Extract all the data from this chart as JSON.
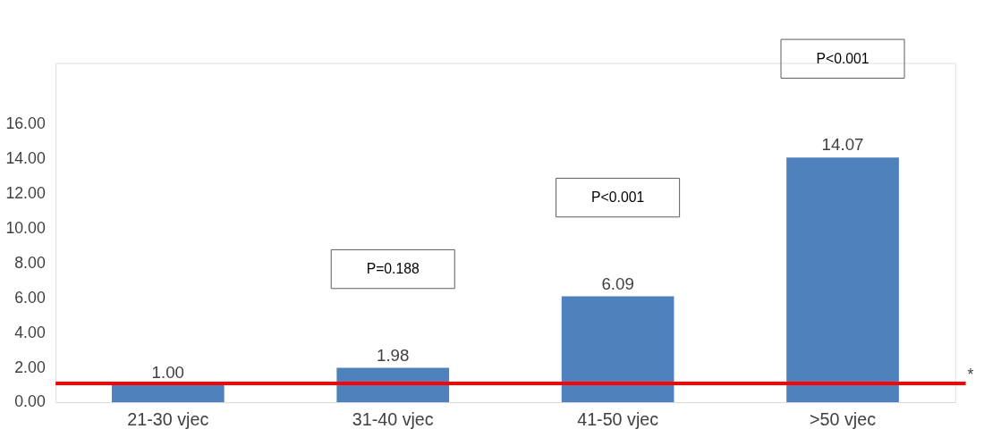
{
  "chart_data": {
    "type": "bar",
    "categories": [
      "21-30 vjec",
      "31-40 vjec",
      "41-50 vjec",
      ">50 vjec"
    ],
    "values": [
      1.0,
      1.98,
      6.09,
      14.07
    ],
    "color": "#4f81bd",
    "value_labels": [
      "1.00",
      "1.98",
      "6.09",
      "14.07"
    ],
    "ylim": [
      0,
      19.5
    ],
    "yticks": [
      {
        "value": 0,
        "label": "0.00"
      },
      {
        "value": 2,
        "label": "2.00"
      },
      {
        "value": 4,
        "label": "4.00"
      },
      {
        "value": 6,
        "label": "6.00"
      },
      {
        "value": 8,
        "label": "8.00"
      },
      {
        "value": 10,
        "label": "10.00"
      },
      {
        "value": 12,
        "label": "12.00"
      },
      {
        "value": 14,
        "label": "14.00"
      },
      {
        "value": 16,
        "label": "16.00"
      }
    ],
    "ref_lines": [
      {
        "axis": "y",
        "value": 1.08,
        "label": "*",
        "color": "#ff0000"
      }
    ],
    "annotations": [
      "P=0.188",
      "P<0.001",
      "P<0.001"
    ],
    "grid": false
  }
}
